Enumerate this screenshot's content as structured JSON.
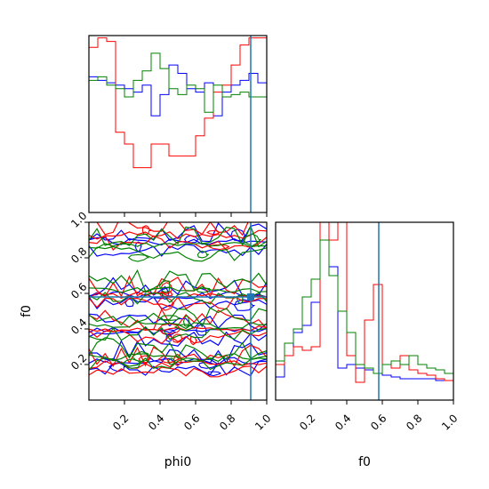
{
  "chart_data": {
    "type": "corner",
    "parameters": [
      "phi0",
      "f0"
    ],
    "truths": {
      "phi0": 0.91,
      "f0": 0.58
    },
    "series_colors": [
      "#0000ff",
      "#ff0000",
      "#008000"
    ],
    "truth_color": "#1f77b4",
    "ticks": {
      "phi0": [
        "0.2",
        "0.4",
        "0.6",
        "0.8",
        "1.0"
      ],
      "f0": [
        "0.2",
        "0.4",
        "0.6",
        "0.8",
        "1.0"
      ]
    },
    "bin_edges": [
      0.0,
      0.05,
      0.1,
      0.15,
      0.2,
      0.25,
      0.3,
      0.35,
      0.4,
      0.45,
      0.5,
      0.55,
      0.6,
      0.65,
      0.7,
      0.75,
      0.8,
      0.85,
      0.9,
      0.95,
      1.0
    ],
    "hist_phi0": {
      "ylim": [
        0,
        1.5
      ],
      "series": [
        {
          "color": "#0000ff",
          "values": [
            1.15,
            1.12,
            1.1,
            1.08,
            1.05,
            1.02,
            1.08,
            0.82,
            1.0,
            1.25,
            1.18,
            1.05,
            1.02,
            1.1,
            0.82,
            1.02,
            1.08,
            1.12,
            1.18,
            1.1
          ]
        },
        {
          "color": "#ff0000",
          "values": [
            1.4,
            1.48,
            1.45,
            0.68,
            0.58,
            0.38,
            0.38,
            0.58,
            0.58,
            0.48,
            0.48,
            0.48,
            0.65,
            0.8,
            1.02,
            1.08,
            1.25,
            1.42,
            1.48,
            1.48
          ]
        },
        {
          "color": "#008000",
          "values": [
            1.12,
            1.15,
            1.08,
            1.05,
            0.98,
            1.12,
            1.2,
            1.35,
            1.22,
            1.05,
            1.0,
            1.08,
            1.05,
            0.85,
            1.08,
            0.98,
            1.0,
            1.02,
            0.98,
            0.98
          ]
        }
      ]
    },
    "hist_f0": {
      "ylim": [
        0,
        1.0
      ],
      "series": [
        {
          "color": "#0000ff",
          "values": [
            0.13,
            0.25,
            0.38,
            0.42,
            0.55,
            1.0,
            0.75,
            0.18,
            0.2,
            0.18,
            0.17,
            0.15,
            0.14,
            0.13,
            0.12,
            0.12,
            0.12,
            0.12,
            0.11,
            0.11
          ]
        },
        {
          "color": "#ff0000",
          "values": [
            0.2,
            0.25,
            0.3,
            0.28,
            0.3,
            1.0,
            0.9,
            1.0,
            0.25,
            0.1,
            0.45,
            0.65,
            0.2,
            0.18,
            0.25,
            0.17,
            0.15,
            0.14,
            0.12,
            0.11
          ]
        },
        {
          "color": "#008000",
          "values": [
            0.22,
            0.32,
            0.4,
            0.58,
            0.68,
            0.9,
            0.7,
            0.5,
            0.38,
            0.2,
            0.18,
            0.15,
            0.2,
            0.22,
            0.2,
            0.25,
            0.2,
            0.18,
            0.17,
            0.15
          ]
        }
      ]
    },
    "contour": {
      "levels": 3,
      "series": [
        {
          "color": "#0000ff",
          "center_f0": [
            0.21,
            0.38,
            0.58,
            0.88
          ]
        },
        {
          "color": "#ff0000",
          "center_f0": [
            0.19,
            0.39,
            0.58,
            0.92
          ]
        },
        {
          "color": "#008000",
          "center_f0": [
            0.23,
            0.41,
            0.61,
            0.86
          ]
        }
      ]
    }
  }
}
